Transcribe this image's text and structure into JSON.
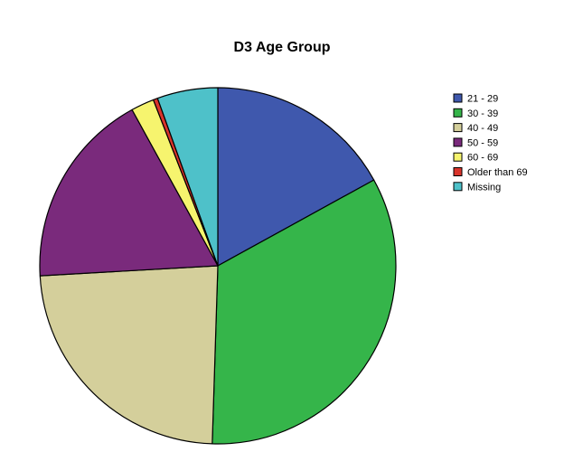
{
  "chart_data": {
    "type": "pie",
    "title": "D3 Age Group",
    "categories": [
      "21 - 29",
      "30 - 39",
      "40 - 49",
      "50 - 59",
      "60 - 69",
      "Older than 69",
      "Missing"
    ],
    "values": [
      17.0,
      33.5,
      23.6,
      17.9,
      2.1,
      0.4,
      5.5
    ],
    "unit": "percent of responses (estimated from slice angles)",
    "colors": [
      "#3f58ad",
      "#35b54a",
      "#d4cf9b",
      "#7a2a7c",
      "#f6f46e",
      "#d9342b",
      "#4ec1c9"
    ],
    "start_angle": "12 o'clock",
    "direction": "clockwise",
    "legend_position": "right"
  }
}
